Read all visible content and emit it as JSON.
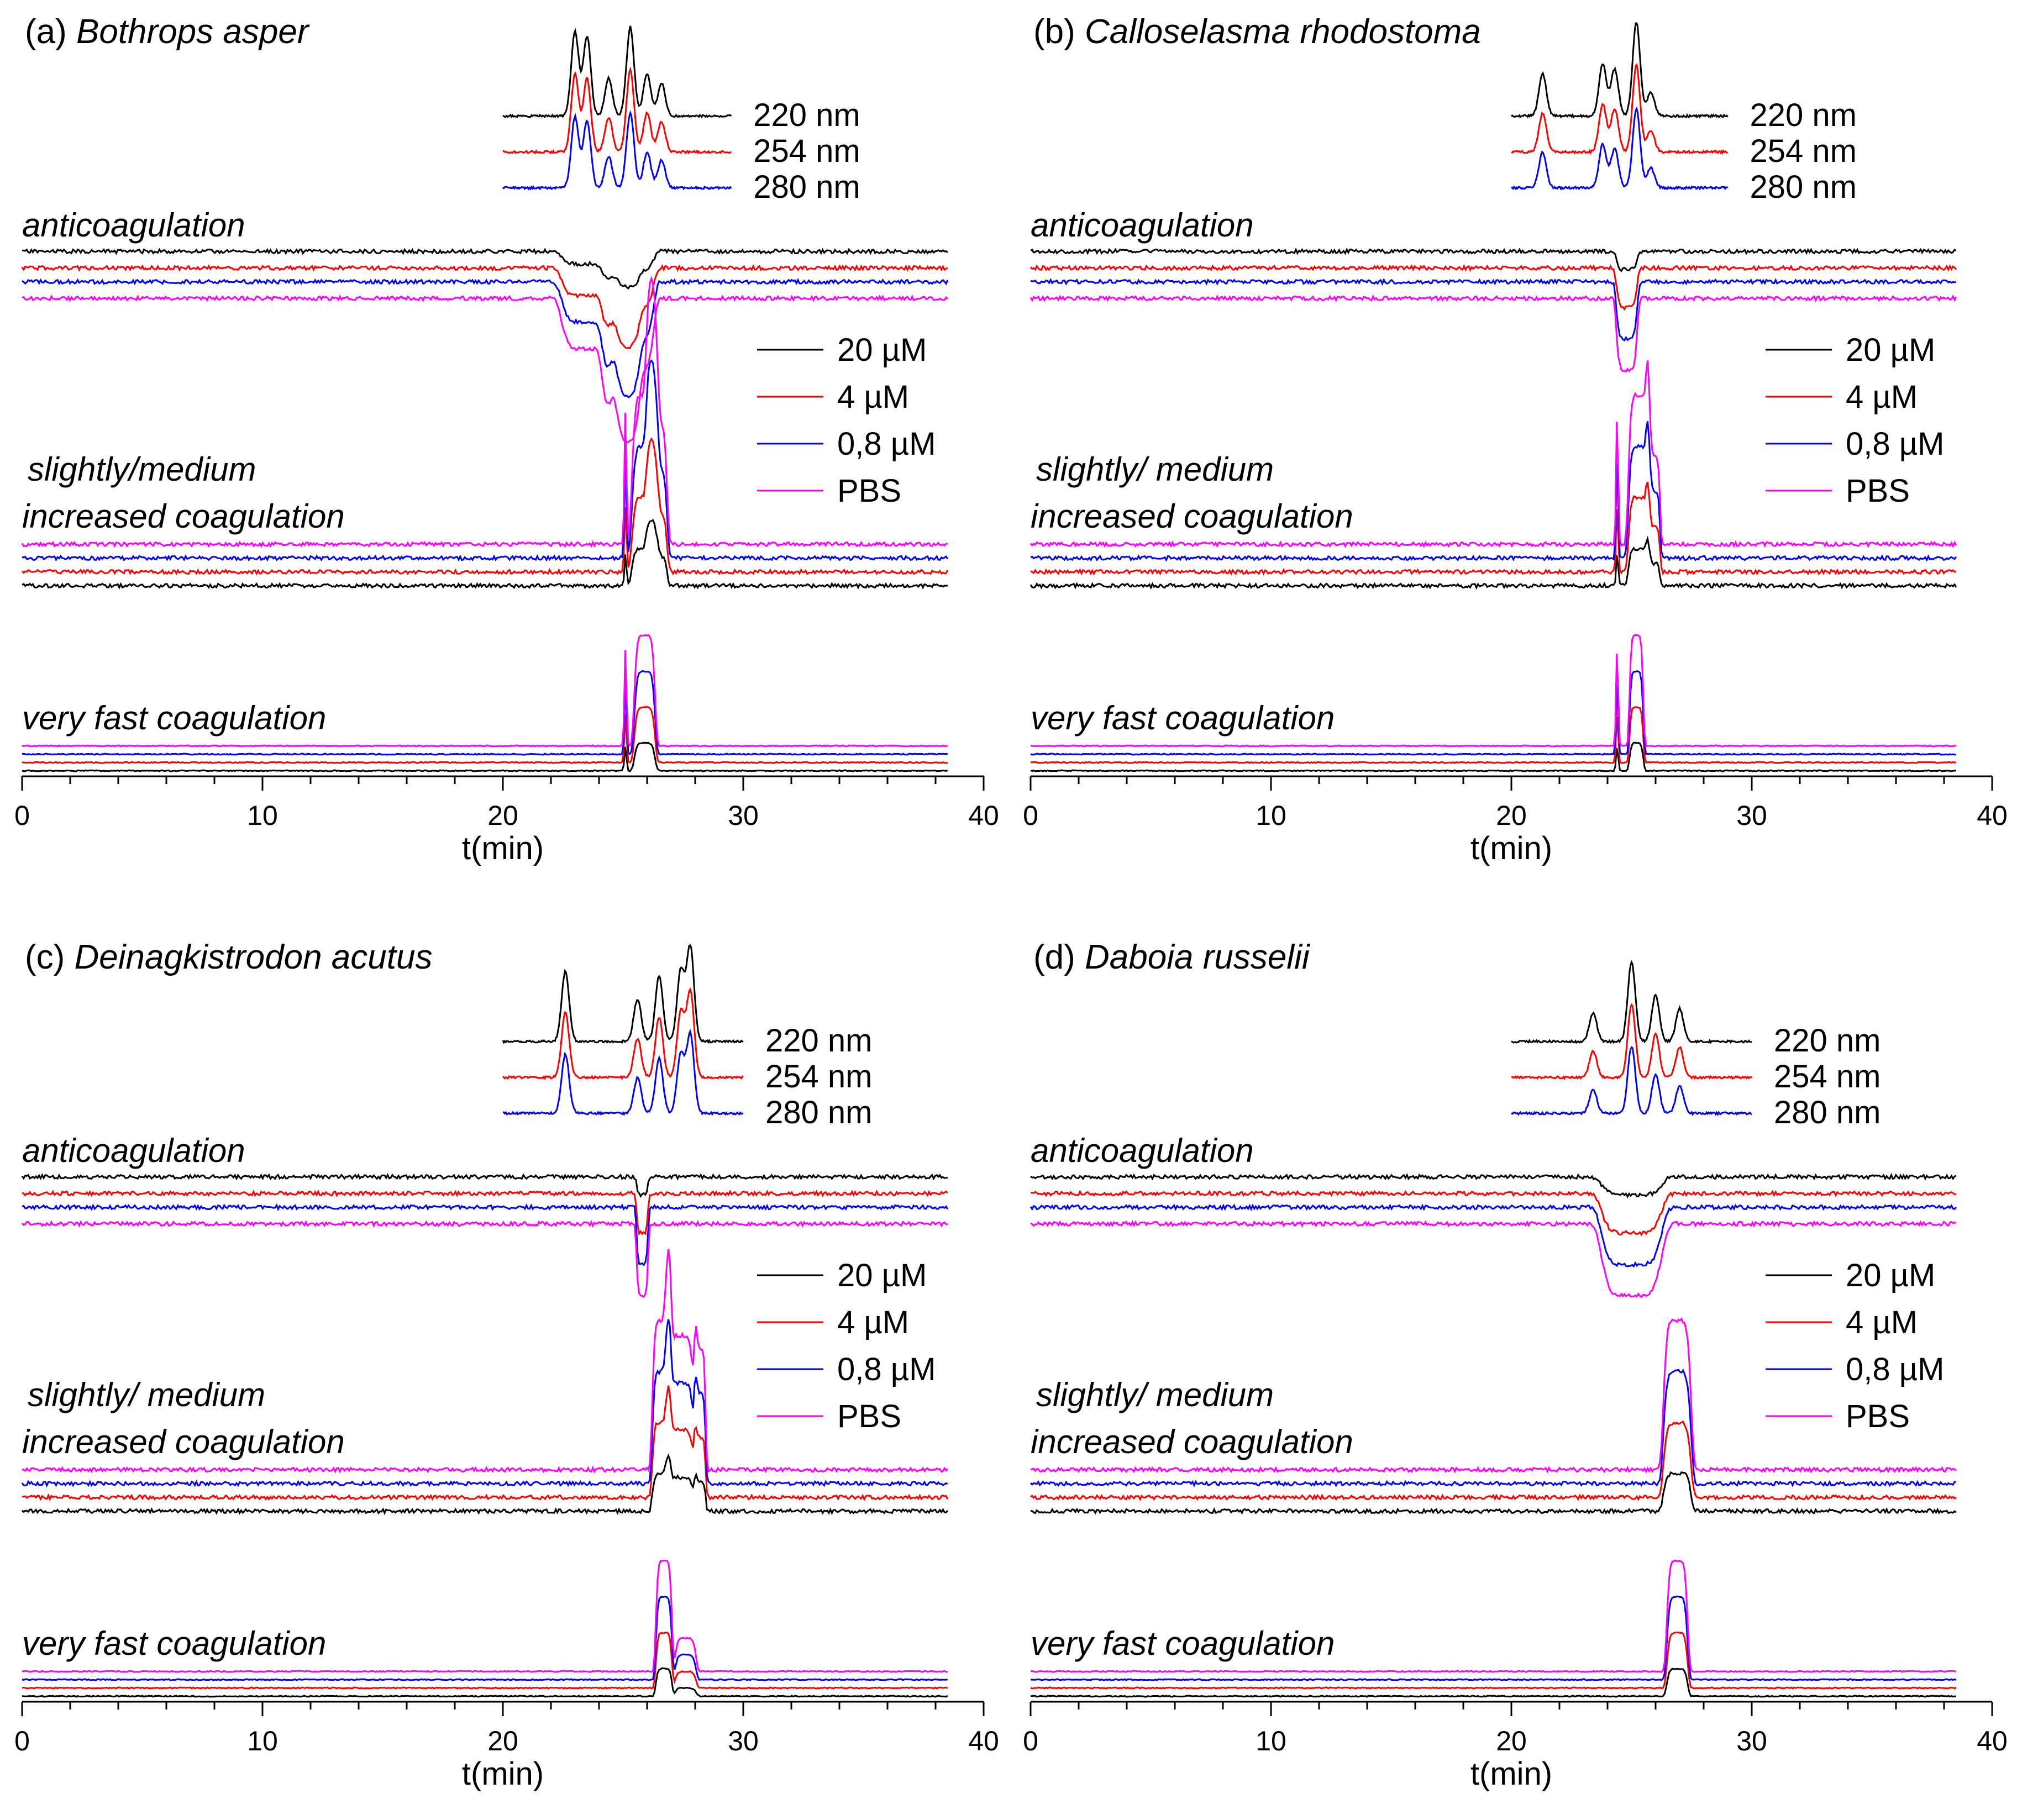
{
  "chart_data": [
    {
      "type": "line",
      "panel_id": "(a)",
      "species": "Bothrops asper",
      "x_axis": {
        "xlabel": "t(min)",
        "xlim": [
          0,
          40
        ],
        "ticks": [
          "0",
          "10",
          "20",
          "30",
          "40"
        ]
      },
      "uv": {
        "x_range": [
          20,
          29.5
        ],
        "peaks": [
          [
            23.0,
            0.9
          ],
          [
            23.5,
            0.85
          ],
          [
            24.4,
            0.4
          ],
          [
            25.3,
            0.95
          ],
          [
            26.0,
            0.45
          ],
          [
            26.6,
            0.35
          ]
        ],
        "labels": [
          "220 nm",
          "254 nm",
          "280 nm"
        ]
      },
      "sections": [
        {
          "name": "anticoagulation",
          "label": "anticoagulation",
          "direction": -1,
          "features": [
            [
              24.9,
              1.6,
              1.0
            ],
            [
              25.5,
              1.6,
              1.0
            ],
            [
              23.5,
              2.2,
              0.7
            ]
          ],
          "spikes": []
        },
        {
          "name": "increased",
          "label_lines": [
            "slightly/medium",
            "increased coagulation"
          ],
          "direction": 1,
          "features": [
            [
              25.9,
              1.1,
              1.0
            ],
            [
              26.4,
              0.9,
              0.8
            ]
          ],
          "spikes": [
            25.1
          ]
        },
        {
          "name": "veryfast",
          "label": "very fast coagulation",
          "direction": 1,
          "features": [
            [
              25.9,
              0.9,
              1.0
            ]
          ],
          "spikes": [
            25.1
          ]
        }
      ],
      "legend": [
        "20 µM",
        "4 µM",
        "0,8 µM",
        "PBS"
      ]
    },
    {
      "type": "line",
      "panel_id": "(b)",
      "species": "Calloselasma rhodostoma",
      "x_axis": {
        "xlabel": "t(min)",
        "xlim": [
          0,
          40
        ],
        "ticks": [
          "0",
          "10",
          "20",
          "30",
          "40"
        ]
      },
      "uv": {
        "x_range": [
          20,
          29
        ],
        "peaks": [
          [
            21.3,
            0.45
          ],
          [
            23.8,
            0.55
          ],
          [
            24.3,
            0.5
          ],
          [
            25.2,
            1.0
          ],
          [
            25.8,
            0.25
          ]
        ],
        "labels": [
          "220 nm",
          "254 nm",
          "280 nm"
        ]
      },
      "sections": [
        {
          "name": "anticoagulation",
          "label": "anticoagulation",
          "direction": -1,
          "features": [
            [
              24.8,
              0.9,
              1.0
            ]
          ],
          "spikes": []
        },
        {
          "name": "increased",
          "label_lines": [
            "slightly/ medium",
            "increased coagulation"
          ],
          "direction": 1,
          "features": [
            [
              25.3,
              0.9,
              1.0
            ],
            [
              25.9,
              0.6,
              0.6
            ]
          ],
          "spikes": [
            24.4
          ]
        },
        {
          "name": "veryfast",
          "label": "very fast coagulation",
          "direction": 1,
          "features": [
            [
              25.2,
              0.6,
              1.0
            ]
          ],
          "spikes": [
            24.4
          ]
        }
      ],
      "legend": [
        "20 µM",
        "4 µM",
        "0,8 µM",
        "PBS"
      ]
    },
    {
      "type": "line",
      "panel_id": "(c)",
      "species": "Deinagkistrodon acutus",
      "x_axis": {
        "xlabel": "t(min)",
        "xlim": [
          0,
          40
        ],
        "ticks": [
          "0",
          "10",
          "20",
          "30",
          "40"
        ]
      },
      "uv": {
        "x_range": [
          20,
          30
        ],
        "peaks": [
          [
            22.6,
            0.75
          ],
          [
            25.6,
            0.45
          ],
          [
            26.5,
            0.7
          ],
          [
            27.4,
            0.75
          ],
          [
            27.8,
            1.0
          ]
        ],
        "labels": [
          "220 nm",
          "254 nm",
          "280 nm"
        ]
      },
      "sections": [
        {
          "name": "anticoagulation",
          "label": "anticoagulation",
          "direction": -1,
          "features": [
            [
              25.8,
              0.5,
              1.0
            ]
          ],
          "spikes": []
        },
        {
          "name": "increased",
          "label_lines": [
            "slightly/ medium",
            "increased coagulation"
          ],
          "direction": 1,
          "features": [
            [
              26.6,
              0.8,
              1.0
            ],
            [
              27.4,
              1.2,
              0.9
            ],
            [
              28.2,
              0.5,
              0.8
            ]
          ],
          "spikes": []
        },
        {
          "name": "veryfast",
          "label": "very fast coagulation",
          "direction": 1,
          "features": [
            [
              26.7,
              0.7,
              1.0
            ],
            [
              27.6,
              0.9,
              0.3
            ]
          ],
          "spikes": []
        }
      ],
      "legend": [
        "20 µM",
        "4 µM",
        "0,8 µM",
        "PBS"
      ]
    },
    {
      "type": "line",
      "panel_id": "(d)",
      "species": "Daboia russelii",
      "x_axis": {
        "xlabel": "t(min)",
        "xlim": [
          0,
          40
        ],
        "ticks": [
          "0",
          "10",
          "20",
          "30",
          "40"
        ]
      },
      "uv": {
        "x_range": [
          20,
          30
        ],
        "peaks": [
          [
            23.4,
            0.3
          ],
          [
            25.0,
            0.85
          ],
          [
            26.0,
            0.5
          ],
          [
            27.0,
            0.35
          ]
        ],
        "labels": [
          "220 nm",
          "254 nm",
          "280 nm"
        ]
      },
      "sections": [
        {
          "name": "anticoagulation",
          "label": "anticoagulation",
          "direction": -1,
          "features": [
            [
              25.0,
              2.6,
              1.0
            ]
          ],
          "spikes": []
        },
        {
          "name": "increased",
          "label_lines": [
            "slightly/ medium",
            "increased coagulation"
          ],
          "direction": 1,
          "features": [
            [
              26.9,
              1.2,
              1.0
            ]
          ],
          "spikes": []
        },
        {
          "name": "veryfast",
          "label": "very fast coagulation",
          "direction": 1,
          "features": [
            [
              26.9,
              0.9,
              1.0
            ]
          ],
          "spikes": []
        }
      ],
      "legend": [
        "20 µM",
        "4 µM",
        "0,8 µM",
        "PBS"
      ]
    }
  ],
  "series_colors": [
    "#000000",
    "#ff0000",
    "#0000ff",
    "#ff00ff"
  ],
  "series_names": [
    "20 µM",
    "4 µM",
    "0,8 µM",
    "PBS"
  ]
}
